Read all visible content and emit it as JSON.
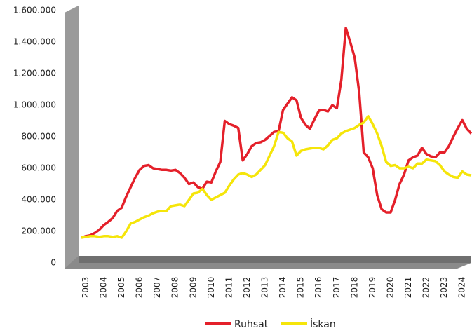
{
  "chart_data": {
    "type": "line",
    "categories": [
      "2003",
      null,
      null,
      null,
      "2004",
      null,
      null,
      null,
      "2005",
      null,
      null,
      null,
      "2006",
      null,
      null,
      null,
      "2007",
      null,
      null,
      null,
      "2008",
      null,
      null,
      null,
      "2009",
      null,
      null,
      null,
      "2010",
      null,
      null,
      null,
      "2011",
      null,
      null,
      null,
      "2012",
      null,
      null,
      null,
      "2013",
      null,
      null,
      null,
      "2014",
      null,
      null,
      null,
      "2015",
      null,
      null,
      null,
      "2016",
      null,
      null,
      null,
      "2017",
      null,
      null,
      null,
      "2018",
      null,
      null,
      null,
      "2019",
      null,
      null,
      null,
      "2020",
      null,
      null,
      null,
      "2021",
      null,
      null,
      null,
      "2022",
      null,
      null,
      null,
      "2023",
      null,
      null,
      null,
      "2024",
      null,
      null,
      null
    ],
    "series": [
      {
        "name": "Ruhsat",
        "color": "#e4202a",
        "values": [
          160000,
          170000,
          175000,
          190000,
          210000,
          240000,
          260000,
          285000,
          330000,
          350000,
          420000,
          480000,
          540000,
          590000,
          615000,
          620000,
          600000,
          595000,
          590000,
          590000,
          585000,
          590000,
          570000,
          540000,
          500000,
          510000,
          480000,
          470000,
          515000,
          510000,
          580000,
          640000,
          900000,
          880000,
          870000,
          855000,
          650000,
          690000,
          740000,
          760000,
          765000,
          780000,
          805000,
          830000,
          835000,
          970000,
          1010000,
          1050000,
          1030000,
          920000,
          875000,
          850000,
          910000,
          965000,
          970000,
          960000,
          1000000,
          980000,
          1160000,
          1490000,
          1400000,
          1300000,
          1080000,
          700000,
          670000,
          600000,
          430000,
          340000,
          320000,
          320000,
          400000,
          500000,
          560000,
          650000,
          670000,
          680000,
          730000,
          690000,
          675000,
          670000,
          700000,
          700000,
          740000,
          800000,
          855000,
          905000,
          850000,
          820000
        ]
      },
      {
        "name": "İskan",
        "color": "#f5e50a",
        "values": [
          160000,
          165000,
          170000,
          170000,
          165000,
          170000,
          170000,
          165000,
          170000,
          160000,
          200000,
          250000,
          260000,
          275000,
          290000,
          300000,
          315000,
          325000,
          330000,
          330000,
          360000,
          365000,
          370000,
          360000,
          400000,
          440000,
          445000,
          470000,
          430000,
          400000,
          415000,
          430000,
          445000,
          490000,
          530000,
          560000,
          570000,
          560000,
          545000,
          560000,
          590000,
          620000,
          680000,
          740000,
          830000,
          825000,
          790000,
          770000,
          680000,
          710000,
          720000,
          725000,
          730000,
          730000,
          720000,
          745000,
          780000,
          790000,
          820000,
          835000,
          845000,
          855000,
          875000,
          890000,
          930000,
          880000,
          820000,
          740000,
          640000,
          615000,
          620000,
          600000,
          600000,
          610000,
          600000,
          630000,
          630000,
          655000,
          650000,
          645000,
          620000,
          580000,
          560000,
          545000,
          540000,
          580000,
          560000,
          555000
        ]
      }
    ],
    "ylim": [
      0,
      1600000
    ],
    "yticks": [
      0,
      {
        "value": 200000,
        "label": "200.000"
      },
      {
        "value": 400000,
        "label": "400.000"
      },
      {
        "value": 600000,
        "label": "600.000"
      },
      {
        "value": 800000,
        "label": "800.000"
      },
      {
        "value": 1000000,
        "label": "1.000.000"
      },
      {
        "value": 1200000,
        "label": "1.200.000"
      },
      {
        "value": 1400000,
        "label": "1.400.000"
      },
      {
        "value": 1600000,
        "label": "1.600.000"
      }
    ],
    "legend": "bottom"
  }
}
